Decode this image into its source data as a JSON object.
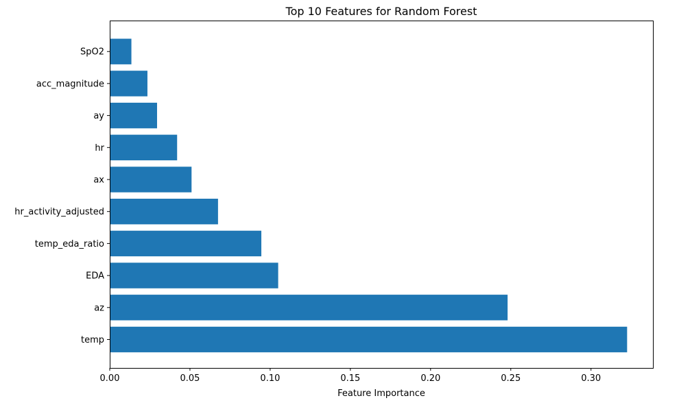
{
  "chart_data": {
    "type": "bar",
    "orientation": "horizontal",
    "title": "Top 10 Features for Random Forest",
    "xlabel": "Feature Importance",
    "ylabel": "",
    "categories": [
      "temp",
      "az",
      "EDA",
      "temp_eda_ratio",
      "hr_activity_adjusted",
      "ax",
      "hr",
      "ay",
      "acc_magnitude",
      "SpO2"
    ],
    "values": [
      0.3225,
      0.248,
      0.105,
      0.0945,
      0.0675,
      0.051,
      0.042,
      0.0295,
      0.0235,
      0.0135
    ],
    "xlim": [
      0,
      0.3386
    ],
    "xticks": [
      0.0,
      0.05,
      0.1,
      0.15,
      0.2,
      0.25,
      0.3
    ],
    "xtick_labels": [
      "0.00",
      "0.05",
      "0.10",
      "0.15",
      "0.20",
      "0.25",
      "0.30"
    ],
    "bar_color": "#1f77b4",
    "grid": false,
    "legend": "none"
  }
}
